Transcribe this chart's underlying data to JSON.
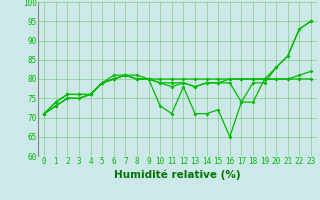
{
  "x": [
    0,
    1,
    2,
    3,
    4,
    5,
    6,
    7,
    8,
    9,
    10,
    11,
    12,
    13,
    14,
    15,
    16,
    17,
    18,
    19,
    20,
    21,
    22,
    23
  ],
  "series": [
    [
      71,
      74,
      76,
      76,
      76,
      79,
      80,
      81,
      80,
      80,
      79,
      78,
      79,
      78,
      79,
      79,
      79,
      74,
      79,
      79,
      83,
      86,
      93,
      95
    ],
    [
      71,
      74,
      76,
      76,
      76,
      79,
      80,
      81,
      80,
      80,
      80,
      80,
      80,
      80,
      80,
      80,
      80,
      80,
      80,
      80,
      80,
      80,
      81,
      82
    ],
    [
      71,
      73,
      75,
      75,
      76,
      79,
      80,
      81,
      80,
      80,
      79,
      79,
      79,
      78,
      79,
      79,
      80,
      80,
      80,
      80,
      83,
      86,
      93,
      95
    ],
    [
      71,
      73,
      75,
      75,
      76,
      79,
      81,
      81,
      81,
      80,
      73,
      71,
      78,
      71,
      71,
      72,
      65,
      74,
      74,
      80,
      80,
      80,
      80,
      80
    ]
  ],
  "line_color": "#00bb00",
  "marker": "D",
  "marker_size": 2,
  "background_color": "#cce8e8",
  "grid_color": "#88cc88",
  "xlabel": "Humidité relative (%)",
  "ylim": [
    60,
    100
  ],
  "xlim": [
    -0.5,
    23.5
  ],
  "yticks": [
    60,
    65,
    70,
    75,
    80,
    85,
    90,
    95,
    100
  ],
  "xticks": [
    0,
    1,
    2,
    3,
    4,
    5,
    6,
    7,
    8,
    9,
    10,
    11,
    12,
    13,
    14,
    15,
    16,
    17,
    18,
    19,
    20,
    21,
    22,
    23
  ],
  "tick_fontsize": 5.5,
  "xlabel_fontsize": 7.5,
  "xlabel_color": "#007700",
  "linewidth": 0.9
}
